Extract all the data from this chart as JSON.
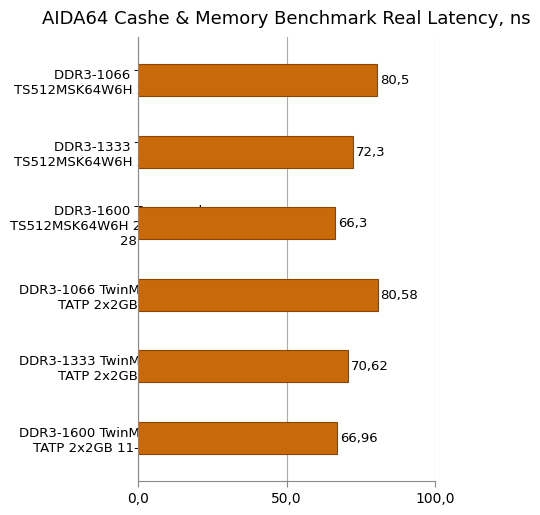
{
  "title": "AIDA64 Cashe & Memory Benchmark Real Latency, ns",
  "categories": [
    "DDR3-1066 Transcend\nTS512MSK64W6H 2x4GB 7-7-7-19",
    "DDR3-1333 Transcend\nTS512MSK64W6H 2x4GB 9-9-9-24",
    "DDR3-1600 Transcend\nTS512MSK64W6H 2x4GB 11-11-11-\n28",
    "DDR3-1066 TwinMOS 9DECBMIB-\nTATP 2x2GB 7-7-7-20",
    "DDR3-1333 TwinMOS 9DECBMIB-\nTATP 2x2GB 9-9-9-24",
    "DDR3-1600 TwinMOS 9DECBMIB-\nTATP 2x2GB 11-11-11-28 OC"
  ],
  "values": [
    80.5,
    72.3,
    66.3,
    80.58,
    70.62,
    66.96
  ],
  "labels": [
    "80,5",
    "72,3",
    "66,3",
    "80,58",
    "70,62",
    "66,96"
  ],
  "bar_color_face": "#C8690A",
  "bar_color_edge": "#8B4500",
  "xlim": [
    0,
    100
  ],
  "xticks": [
    0,
    50,
    100
  ],
  "xtick_labels": [
    "0,0",
    "50,0",
    "100,0"
  ],
  "background_color": "#ffffff",
  "grid_color": "#aaaaaa",
  "title_fontsize": 13,
  "label_fontsize": 9.5,
  "tick_fontsize": 10
}
